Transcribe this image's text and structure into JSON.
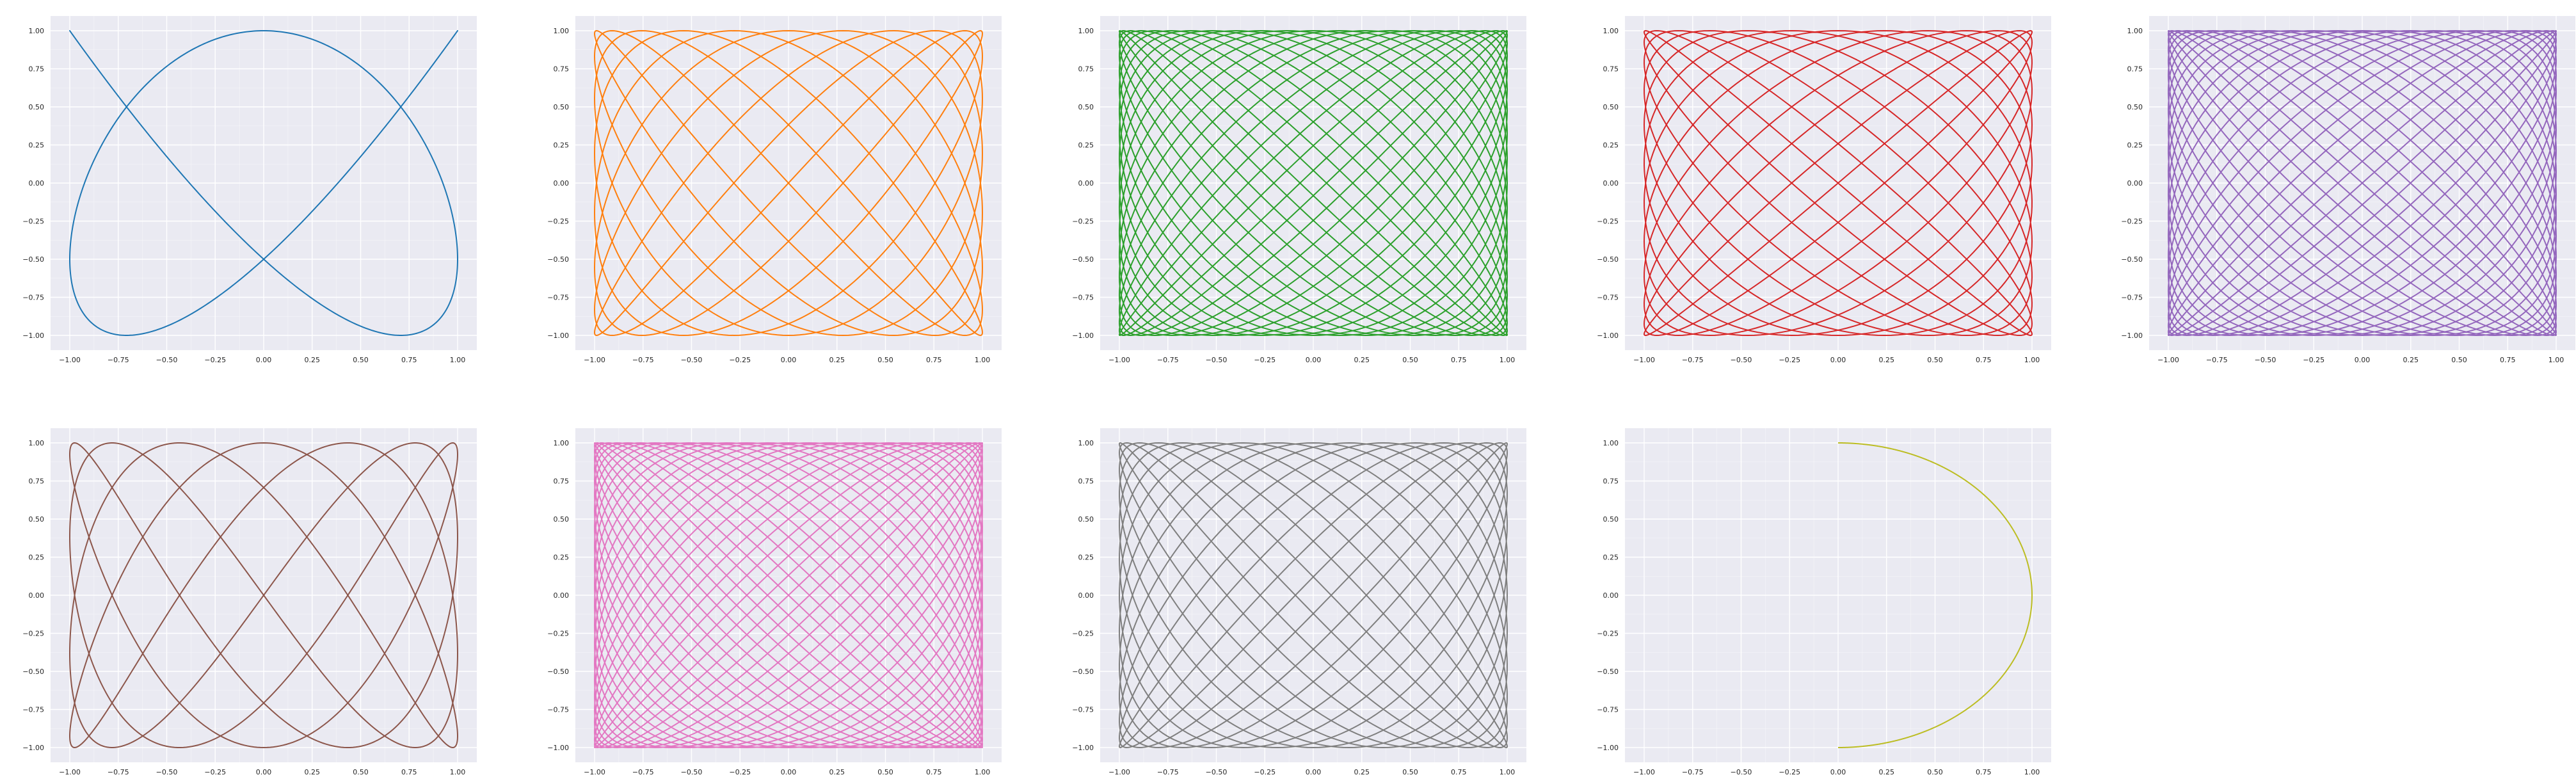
{
  "figure": {
    "background": "#ffffff",
    "axes_facecolor": "#eaeaf2",
    "grid_color": "#ffffff",
    "style": "seaborn darkgrid",
    "grid": true
  },
  "chart_data": [
    {
      "type": "line",
      "title": "",
      "xlabel": "",
      "ylabel": "",
      "grid": true,
      "curve": "lissajous",
      "x_function": "sin(a*t)",
      "y_function": "cos(b*t)",
      "a": 3,
      "b": 4,
      "t_range": [
        0,
        6.2832
      ],
      "xlim": [
        -1.0,
        1.0
      ],
      "ylim": [
        -1.0,
        1.0
      ],
      "xticks": [
        "−1.00",
        "−0.75",
        "−0.50",
        "−0.25",
        "0.00",
        "0.25",
        "0.50",
        "0.75",
        "1.00"
      ],
      "yticks": [
        "1.00",
        "0.75",
        "0.50",
        "0.25",
        "0.00",
        "−0.25",
        "−0.50",
        "−0.75",
        "−1.00"
      ],
      "series": [
        {
          "color": "#1f77b4"
        }
      ]
    },
    {
      "type": "line",
      "title": "",
      "xlabel": "",
      "ylabel": "",
      "grid": true,
      "curve": "lissajous",
      "x_function": "sin(a*t)",
      "y_function": "cos(b*t)",
      "a": 8,
      "b": 11,
      "t_range": [
        0,
        6.2832
      ],
      "xlim": [
        -1.0,
        1.0
      ],
      "ylim": [
        -1.0,
        1.0
      ],
      "xticks": [
        "−1.00",
        "−0.75",
        "−0.50",
        "−0.25",
        "0.00",
        "0.25",
        "0.50",
        "0.75",
        "1.00"
      ],
      "yticks": [
        "1.00",
        "0.75",
        "0.50",
        "0.25",
        "0.00",
        "−0.25",
        "−0.50",
        "−0.75",
        "−1.00"
      ],
      "series": [
        {
          "color": "#ff7f0e"
        }
      ]
    },
    {
      "type": "line",
      "title": "",
      "xlabel": "",
      "ylabel": "",
      "grid": true,
      "curve": "lissajous",
      "x_function": "sin(a*t)",
      "y_function": "cos(b*t)",
      "a": 19,
      "b": 23,
      "t_range": [
        0,
        6.2832
      ],
      "xlim": [
        -1.0,
        1.0
      ],
      "ylim": [
        -1.0,
        1.0
      ],
      "xticks": [
        "−1.00",
        "−0.75",
        "−0.50",
        "−0.25",
        "0.00",
        "0.25",
        "0.50",
        "0.75",
        "1.00"
      ],
      "yticks": [
        "1.00",
        "0.75",
        "0.50",
        "0.25",
        "0.00",
        "−0.25",
        "−0.50",
        "−0.75",
        "−1.00"
      ],
      "series": [
        {
          "color": "#2ca02c"
        }
      ]
    },
    {
      "type": "line",
      "title": "",
      "xlabel": "",
      "ylabel": "",
      "grid": true,
      "curve": "lissajous",
      "x_function": "sin(a*t)",
      "y_function": "cos(b*t)",
      "a": 12,
      "b": 13,
      "t_range": [
        0,
        6.2832
      ],
      "xlim": [
        -1.0,
        1.0
      ],
      "ylim": [
        -1.0,
        1.0
      ],
      "xticks": [
        "−1.00",
        "−0.75",
        "−0.50",
        "−0.25",
        "0.00",
        "0.25",
        "0.50",
        "0.75",
        "1.00"
      ],
      "yticks": [
        "1.00",
        "0.75",
        "0.50",
        "0.25",
        "0.00",
        "−0.25",
        "−0.50",
        "−0.75",
        "−1.00"
      ],
      "series": [
        {
          "color": "#d62728"
        }
      ]
    },
    {
      "type": "line",
      "title": "",
      "xlabel": "",
      "ylabel": "",
      "grid": true,
      "curve": "lissajous",
      "x_function": "sin(a*t)",
      "y_function": "cos(b*t)",
      "a": 22,
      "b": 25,
      "t_range": [
        0,
        6.2832
      ],
      "xlim": [
        -1.0,
        1.0
      ],
      "ylim": [
        -1.0,
        1.0
      ],
      "xticks": [
        "−1.00",
        "−0.75",
        "−0.50",
        "−0.25",
        "0.00",
        "0.25",
        "0.50",
        "0.75",
        "1.00"
      ],
      "yticks": [
        "1.00",
        "0.75",
        "0.50",
        "0.25",
        "0.00",
        "−0.25",
        "−0.50",
        "−0.75",
        "−1.00"
      ],
      "series": [
        {
          "color": "#9467bd"
        }
      ]
    },
    {
      "type": "line",
      "title": "",
      "xlabel": "",
      "ylabel": "",
      "grid": true,
      "curve": "lissajous",
      "x_function": "sin(a*t)",
      "y_function": "cos(b*t)",
      "a": 4,
      "b": 7,
      "t_range": [
        0,
        6.2832
      ],
      "xlim": [
        -1.0,
        1.0
      ],
      "ylim": [
        -1.0,
        1.0
      ],
      "xticks": [
        "−1.00",
        "−0.75",
        "−0.50",
        "−0.25",
        "0.00",
        "0.25",
        "0.50",
        "0.75",
        "1.00"
      ],
      "yticks": [
        "1.00",
        "0.75",
        "0.50",
        "0.25",
        "0.00",
        "−0.25",
        "−0.50",
        "−0.75",
        "−1.00"
      ],
      "series": [
        {
          "color": "#8c564b"
        }
      ]
    },
    {
      "type": "line",
      "title": "",
      "xlabel": "",
      "ylabel": "",
      "grid": true,
      "curve": "lissajous",
      "x_function": "sin(a*t)",
      "y_function": "cos(b*t)",
      "a": 24,
      "b": 29,
      "t_range": [
        0,
        6.2832
      ],
      "xlim": [
        -1.0,
        1.0
      ],
      "ylim": [
        -1.0,
        1.0
      ],
      "xticks": [
        "−1.00",
        "−0.75",
        "−0.50",
        "−0.25",
        "0.00",
        "0.25",
        "0.50",
        "0.75",
        "1.00"
      ],
      "yticks": [
        "1.00",
        "0.75",
        "0.50",
        "0.25",
        "0.00",
        "−0.25",
        "−0.50",
        "−0.75",
        "−1.00"
      ],
      "series": [
        {
          "color": "#e377c2"
        }
      ]
    },
    {
      "type": "line",
      "title": "",
      "xlabel": "",
      "ylabel": "",
      "grid": true,
      "curve": "lissajous",
      "x_function": "sin(a*t)",
      "y_function": "cos(b*t)",
      "a": 13,
      "b": 17,
      "t_range": [
        0,
        6.2832
      ],
      "xlim": [
        -1.0,
        1.0
      ],
      "ylim": [
        -1.0,
        1.0
      ],
      "xticks": [
        "−1.00",
        "−0.75",
        "−0.50",
        "−0.25",
        "0.00",
        "0.25",
        "0.50",
        "0.75",
        "1.00"
      ],
      "yticks": [
        "1.00",
        "0.75",
        "0.50",
        "0.25",
        "0.00",
        "−0.25",
        "−0.50",
        "−0.75",
        "−1.00"
      ],
      "series": [
        {
          "color": "#7f7f7f"
        }
      ]
    },
    {
      "type": "line",
      "title": "",
      "xlabel": "",
      "ylabel": "",
      "grid": true,
      "curve": "lissajous",
      "x_function": "sin(a*t)",
      "y_function": "cos(b*t)",
      "a": 1,
      "b": 1,
      "t_range": [
        0,
        3.1416
      ],
      "xlim": [
        -1.0,
        1.0
      ],
      "ylim": [
        -1.0,
        1.0
      ],
      "xticks": [
        "−1.00",
        "−0.75",
        "−0.50",
        "−0.25",
        "0.00",
        "0.25",
        "0.50",
        "0.75",
        "1.00"
      ],
      "yticks": [
        "1.00",
        "0.75",
        "0.50",
        "0.25",
        "0.00",
        "−0.25",
        "−0.50",
        "−0.75",
        "−1.00"
      ],
      "series": [
        {
          "color": "#bcbd22"
        }
      ]
    }
  ]
}
